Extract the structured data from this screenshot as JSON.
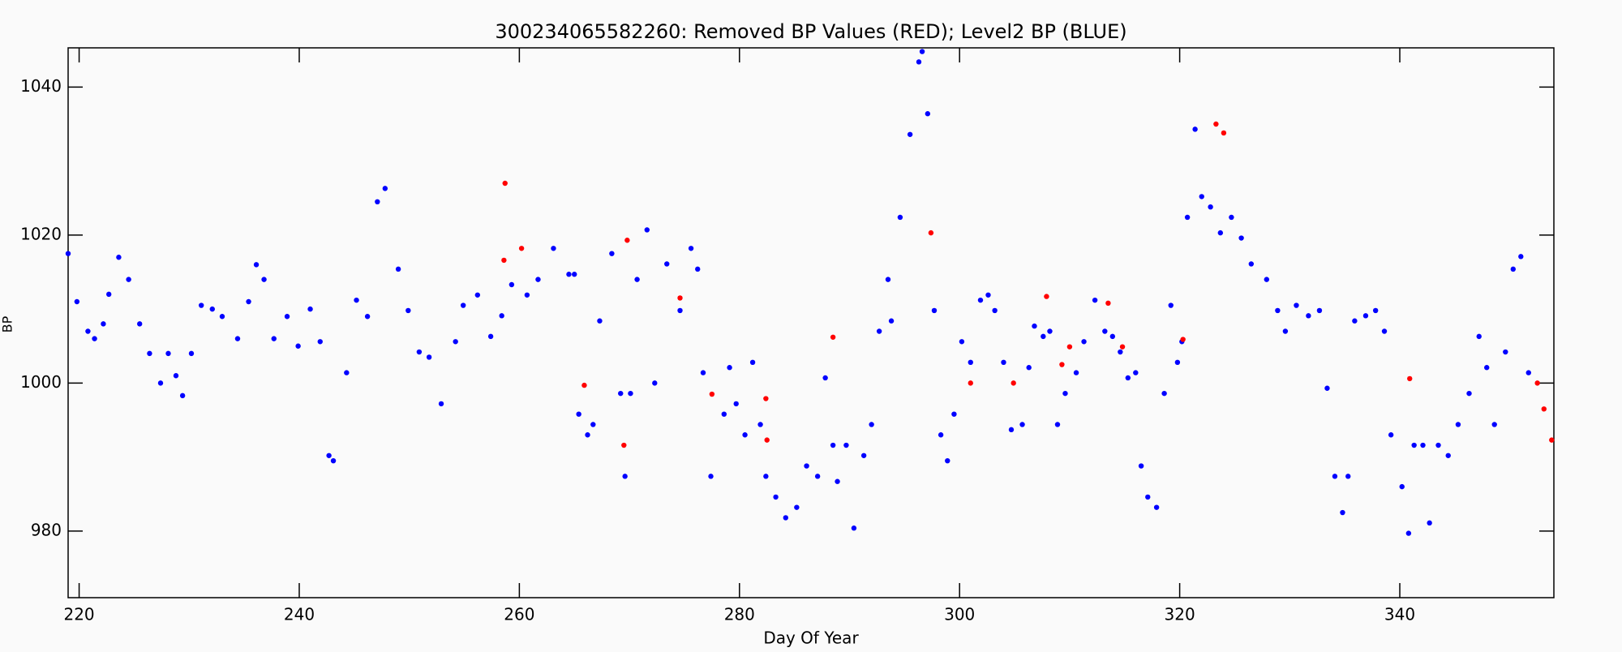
{
  "chart_data": {
    "type": "scatter",
    "title": "300234065582260: Removed BP Values (RED); Level2 BP (BLUE)",
    "x_label": "Day Of Year",
    "y_label": "BP",
    "xlim": [
      219,
      354
    ],
    "ylim": [
      971,
      1045.3
    ],
    "xticks": [
      220,
      240,
      260,
      280,
      300,
      320,
      340
    ],
    "yticks": [
      980,
      1000,
      1020,
      1040
    ],
    "series": [
      {
        "color": "#0000ff",
        "x": [
          219.0,
          219.8,
          220.8,
          221.4,
          222.2,
          222.7,
          223.6,
          224.5,
          225.5,
          226.4,
          227.4,
          228.1,
          228.8,
          229.4,
          230.2,
          231.1,
          232.1,
          233.0,
          234.4,
          235.4,
          236.1,
          236.8,
          237.7,
          238.9,
          239.9,
          241.0,
          241.9,
          242.7,
          243.1,
          244.3,
          245.2,
          246.2,
          247.1,
          247.8,
          249.0,
          249.9,
          250.9,
          251.8,
          252.9,
          254.2,
          254.9,
          256.2,
          257.4,
          258.4,
          259.3,
          260.7,
          261.7,
          263.1,
          264.5,
          265.0,
          265.4,
          266.2,
          266.7,
          267.3,
          268.4,
          269.2,
          269.6,
          270.1,
          270.7,
          271.6,
          272.3,
          273.4,
          274.6,
          275.6,
          276.2,
          276.7,
          277.4,
          278.6,
          279.1,
          279.7,
          280.5,
          281.2,
          281.9,
          282.4,
          283.3,
          284.2,
          285.2,
          286.1,
          287.1,
          287.8,
          288.5,
          288.9,
          289.7,
          290.4,
          291.3,
          292.0,
          292.7,
          293.5,
          293.8,
          294.6,
          295.5,
          296.3,
          296.6,
          297.1,
          297.7,
          298.3,
          298.9,
          299.5,
          300.2,
          301.0,
          301.9,
          302.6,
          303.2,
          304.0,
          304.7,
          305.7,
          306.3,
          306.8,
          307.6,
          308.2,
          308.9,
          309.6,
          310.6,
          311.3,
          312.3,
          313.2,
          313.9,
          314.6,
          315.3,
          316.0,
          316.5,
          317.1,
          317.9,
          318.6,
          319.2,
          319.8,
          320.2,
          320.7,
          321.4,
          322.0,
          322.8,
          323.7,
          324.7,
          325.6,
          326.5,
          327.9,
          328.9,
          329.6,
          330.6,
          331.7,
          332.7,
          333.4,
          334.1,
          334.8,
          335.3,
          335.9,
          336.9,
          337.8,
          338.6,
          339.2,
          340.2,
          340.8,
          341.3,
          342.1,
          342.7,
          343.5,
          344.4,
          345.3,
          346.3,
          347.2,
          347.9,
          348.6,
          349.6,
          350.3,
          351.0,
          351.7
        ],
        "values": [
          1017.5,
          1011,
          1007,
          1006,
          1008,
          1012,
          1017,
          1014,
          1008,
          1004,
          1000,
          1004,
          1001,
          998.3,
          1004,
          1010.5,
          1010,
          1009,
          1006,
          1011,
          1016,
          1014,
          1006,
          1009,
          1005,
          1010,
          1005.6,
          990.2,
          989.5,
          1001.4,
          1011.2,
          1009,
          1024.5,
          1026.3,
          1015.4,
          1009.8,
          1004.2,
          1003.5,
          997.2,
          1005.6,
          1010.5,
          1011.9,
          1006.3,
          1009.1,
          1013.3,
          1011.9,
          1014,
          1018.2,
          1014.7,
          1014.7,
          995.8,
          993,
          994.4,
          1008.4,
          1017.5,
          998.6,
          987.4,
          998.6,
          1014,
          1020.7,
          1000,
          1016.1,
          1009.8,
          1018.2,
          1015.4,
          1001.4,
          987.4,
          995.8,
          1002.1,
          997.2,
          993,
          1002.8,
          994.4,
          987.4,
          984.6,
          981.8,
          983.2,
          988.8,
          987.4,
          1000.7,
          991.6,
          986.7,
          991.6,
          980.4,
          990.2,
          994.4,
          1007,
          1014,
          1008.4,
          1022.4,
          1033.6,
          1043.4,
          1044.8,
          1036.4,
          1009.8,
          993,
          989.5,
          995.8,
          1005.6,
          1002.8,
          1011.2,
          1011.9,
          1009.8,
          1002.8,
          993.7,
          994.4,
          1002.1,
          1007.7,
          1006.3,
          1007,
          994.4,
          998.6,
          1001.4,
          1005.6,
          1011.2,
          1007,
          1006.3,
          1004.2,
          1000.7,
          1001.4,
          988.8,
          984.6,
          983.2,
          998.6,
          1010.5,
          1002.8,
          1005.6,
          1022.4,
          1034.3,
          1025.2,
          1023.8,
          1020.3,
          1022.4,
          1019.6,
          1016.1,
          1014,
          1009.8,
          1007,
          1010.5,
          1009.1,
          1009.8,
          999.3,
          987.4,
          982.5,
          987.4,
          1008.4,
          1009.1,
          1009.8,
          1007,
          993,
          986,
          979.7,
          991.6,
          991.6,
          981.1,
          991.6,
          990.2,
          994.4,
          998.6,
          1006.3,
          1002.1,
          994.4,
          1004.2,
          1015.4,
          1017.1,
          1001.4
        ]
      },
      {
        "color": "#ff0000",
        "x": [
          258.7,
          258.6,
          260.2,
          265.9,
          269.8,
          269.5,
          274.6,
          277.5,
          282.4,
          282.5,
          288.5,
          297.4,
          301.0,
          304.9,
          307.9,
          309.3,
          310.0,
          313.5,
          314.8,
          320.3,
          323.3,
          324.0,
          340.9,
          352.5,
          353.1,
          353.8
        ],
        "values": [
          1027,
          1016.6,
          1018.2,
          999.7,
          1019.3,
          991.6,
          1011.5,
          998.5,
          997.9,
          992.3,
          1006.2,
          1020.3,
          1000,
          1000,
          1011.7,
          1002.5,
          1004.9,
          1010.8,
          1004.9,
          1005.9,
          1035,
          1033.8,
          1000.6,
          1000,
          996.5,
          992.3
        ]
      }
    ]
  }
}
